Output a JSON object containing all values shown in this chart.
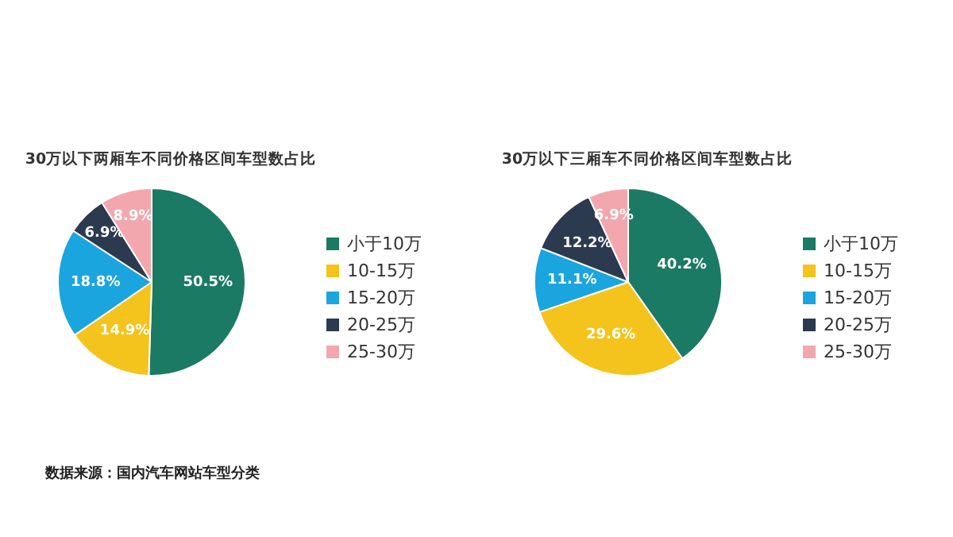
{
  "chart_data": [
    {
      "type": "pie",
      "title": "30万以下两厢车不同价格区间车型数占比",
      "categories": [
        "小于10万",
        "10-15万",
        "15-20万",
        "20-25万",
        "25-30万"
      ],
      "values": [
        50.5,
        14.9,
        18.8,
        6.9,
        8.9
      ],
      "value_labels": [
        "50.5%",
        "14.9%",
        "18.8%",
        "6.9%",
        "8.9%"
      ],
      "colors": [
        "#1b7a64",
        "#f4c31c",
        "#1aa5df",
        "#2c3a4f",
        "#f2a7ae"
      ],
      "legend": "right",
      "annotations": [
        "数据来源：国内汽车网站车型分类"
      ]
    },
    {
      "type": "pie",
      "title": "30万以下三厢车不同价格区间车型数占比",
      "categories": [
        "小于10万",
        "10-15万",
        "15-20万",
        "20-25万",
        "25-30万"
      ],
      "values": [
        40.2,
        29.6,
        11.1,
        12.2,
        6.9
      ],
      "value_labels": [
        "40.2%",
        "29.6%",
        "11.1%",
        "12.2%",
        "6.9%"
      ],
      "colors": [
        "#1b7a64",
        "#f4c31c",
        "#1aa5df",
        "#2c3a4f",
        "#f2a7ae"
      ],
      "legend": "right"
    }
  ]
}
